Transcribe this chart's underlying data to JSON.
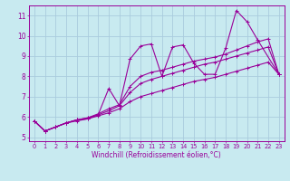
{
  "xlabel": "Windchill (Refroidissement éolien,°C)",
  "bg_color": "#c8eaf0",
  "line_color": "#990099",
  "grid_color": "#aaccdd",
  "xlim": [
    -0.5,
    23.5
  ],
  "ylim": [
    4.8,
    11.5
  ],
  "yticks": [
    5,
    6,
    7,
    8,
    9,
    10,
    11
  ],
  "xticks": [
    0,
    1,
    2,
    3,
    4,
    5,
    6,
    7,
    8,
    9,
    10,
    11,
    12,
    13,
    14,
    15,
    16,
    17,
    18,
    19,
    20,
    21,
    22,
    23
  ],
  "series": [
    {
      "x": [
        0,
        1,
        2,
        3,
        4,
        5,
        6,
        7,
        8,
        9,
        10,
        11,
        12,
        13,
        14,
        15,
        16,
        17,
        18,
        19,
        20,
        21,
        23
      ],
      "y": [
        5.8,
        5.3,
        5.5,
        5.7,
        5.8,
        5.9,
        6.1,
        7.4,
        6.55,
        8.85,
        9.5,
        9.6,
        8.0,
        9.45,
        9.55,
        8.65,
        8.1,
        8.1,
        9.4,
        11.25,
        10.7,
        9.8,
        8.1
      ]
    },
    {
      "x": [
        0,
        1,
        2,
        3,
        4,
        5,
        6,
        7,
        8,
        9,
        10,
        11,
        12,
        13,
        14,
        15,
        16,
        17,
        18,
        19,
        20,
        21,
        22,
        23
      ],
      "y": [
        5.8,
        5.3,
        5.5,
        5.7,
        5.85,
        5.95,
        6.15,
        6.4,
        6.6,
        7.5,
        8.0,
        8.2,
        8.3,
        8.45,
        8.6,
        8.75,
        8.85,
        8.95,
        9.1,
        9.3,
        9.5,
        9.7,
        9.85,
        8.1
      ]
    },
    {
      "x": [
        0,
        1,
        2,
        3,
        4,
        5,
        6,
        7,
        8,
        9,
        10,
        11,
        12,
        13,
        14,
        15,
        16,
        17,
        18,
        19,
        20,
        21,
        22,
        23
      ],
      "y": [
        5.8,
        5.3,
        5.5,
        5.7,
        5.85,
        5.95,
        6.1,
        6.3,
        6.55,
        7.2,
        7.65,
        7.85,
        8.0,
        8.15,
        8.3,
        8.45,
        8.6,
        8.7,
        8.85,
        9.0,
        9.15,
        9.3,
        9.45,
        8.1
      ]
    },
    {
      "x": [
        0,
        1,
        2,
        3,
        4,
        5,
        6,
        7,
        8,
        9,
        10,
        11,
        12,
        13,
        14,
        15,
        16,
        17,
        18,
        19,
        20,
        21,
        22,
        23
      ],
      "y": [
        5.8,
        5.3,
        5.5,
        5.7,
        5.85,
        5.9,
        6.05,
        6.2,
        6.4,
        6.75,
        7.0,
        7.15,
        7.3,
        7.45,
        7.6,
        7.75,
        7.85,
        7.95,
        8.1,
        8.25,
        8.4,
        8.55,
        8.7,
        8.1
      ]
    }
  ]
}
